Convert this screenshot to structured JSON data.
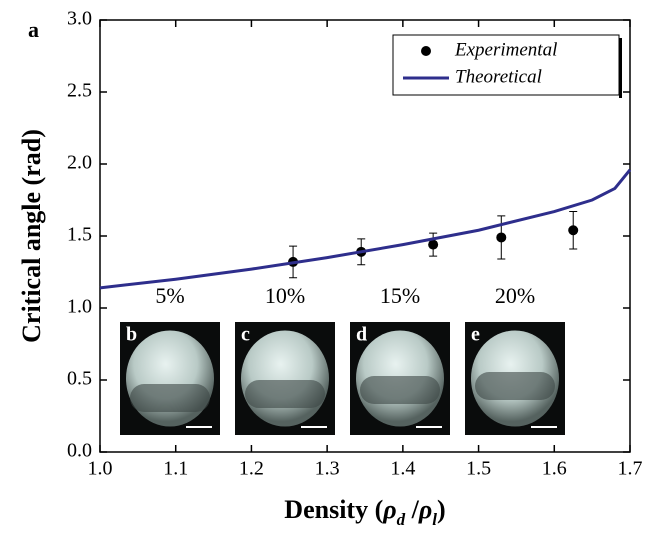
{
  "chart_data": {
    "type": "line",
    "panel_label": "a",
    "ylabel": "Critical angle (rad)",
    "xlabel_parts": [
      "Density (",
      "ρ",
      "d",
      " /",
      "ρ",
      "l",
      ")"
    ],
    "xlim": [
      1.0,
      1.7
    ],
    "xticks": [
      {
        "value": 1.0,
        "label": "1.0"
      },
      {
        "value": 1.1,
        "label": "1.1"
      },
      {
        "value": 1.2,
        "label": "1.2"
      },
      {
        "value": 1.3,
        "label": "1.3"
      },
      {
        "value": 1.4,
        "label": "1.4"
      },
      {
        "value": 1.5,
        "label": "1.5"
      },
      {
        "value": 1.6,
        "label": "1.6"
      },
      {
        "value": 1.7,
        "label": "1.7"
      }
    ],
    "ylim": [
      0.0,
      3.0
    ],
    "yticks": [
      {
        "value": 0.0,
        "label": "0.0"
      },
      {
        "value": 0.5,
        "label": "0.5"
      },
      {
        "value": 1.0,
        "label": "1.0"
      },
      {
        "value": 1.5,
        "label": "1.5"
      },
      {
        "value": 2.0,
        "label": "2.0"
      },
      {
        "value": 2.5,
        "label": "2.5"
      },
      {
        "value": 3.0,
        "label": "3.0"
      }
    ],
    "legend": "upper right",
    "series": [
      {
        "name": "Experimental",
        "type": "scatter",
        "color": "#000000",
        "x": [
          1.255,
          1.345,
          1.44,
          1.53,
          1.625
        ],
        "values": [
          1.32,
          1.39,
          1.44,
          1.49,
          1.54
        ],
        "errors": [
          0.11,
          0.09,
          0.08,
          0.15,
          0.13
        ]
      },
      {
        "name": "Theoretical",
        "type": "line",
        "color": "#2e2e8c",
        "x": [
          1.0,
          1.1,
          1.2,
          1.3,
          1.4,
          1.5,
          1.6,
          1.65,
          1.68,
          1.7
        ],
        "values": [
          1.14,
          1.2,
          1.27,
          1.35,
          1.44,
          1.54,
          1.67,
          1.75,
          1.83,
          1.96
        ]
      }
    ],
    "insets": [
      {
        "label": "b",
        "percent": "5%"
      },
      {
        "label": "c",
        "percent": "10%"
      },
      {
        "label": "d",
        "percent": "15%"
      },
      {
        "label": "e",
        "percent": "20%"
      }
    ]
  }
}
